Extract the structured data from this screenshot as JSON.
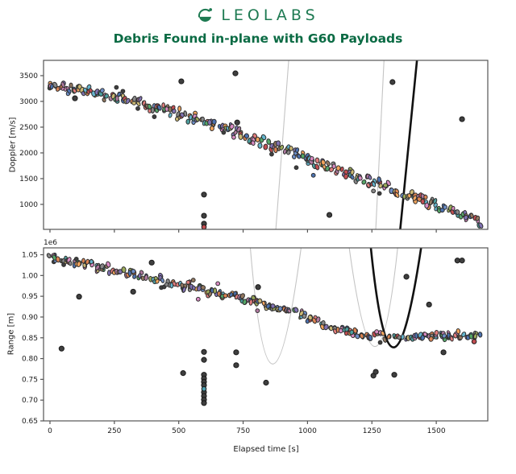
{
  "header": {
    "brand": "LEOLABS",
    "title": "Debris Found in-plane with G60 Payloads"
  },
  "xlabel": "Elapsed time [s]",
  "style": {
    "brand_color": "#1e7a52",
    "title_color": "#0b6b44",
    "axis_color": "#555555",
    "text_color": "#1a1a1a",
    "point_edge": "#2f2f2f",
    "outlier_fill": "#3f3f3f",
    "outlier_edge": "#1b1b1b",
    "faint_curve": "#c4c4c4",
    "bold_curve": "#111111",
    "palette": [
      "#c44e52",
      "#dd8452",
      "#55a868",
      "#4c72b0",
      "#8172b3",
      "#da8bc3",
      "#937860",
      "#ccb974",
      "#64b5cd",
      "#e27c7c",
      "#4c9f9f",
      "#b07aa1",
      "#9cab5a",
      "#f2a45c",
      "#6d8fc9",
      "#888888"
    ]
  },
  "chart_data": [
    {
      "type": "scatter",
      "subplot": "doppler",
      "ylabel": "Doppler [m/s]",
      "xlim": [
        -25,
        1700
      ],
      "ylim": [
        515,
        3797
      ],
      "yticks": [
        1000,
        1500,
        2000,
        2500,
        3000,
        3500
      ],
      "xticks": [
        0,
        250,
        500,
        750,
        1000,
        1250,
        1500
      ],
      "show_xtick_labels": false,
      "grid": false,
      "band_trend": [
        [
          0,
          3330
        ],
        [
          125,
          3220
        ],
        [
          275,
          3065
        ],
        [
          430,
          2860
        ],
        [
          590,
          2625
        ],
        [
          745,
          2345
        ],
        [
          900,
          2080
        ],
        [
          1060,
          1765
        ],
        [
          1215,
          1500
        ],
        [
          1370,
          1220
        ],
        [
          1530,
          940
        ],
        [
          1670,
          670
        ]
      ],
      "band_jitter": 70,
      "band_clusters": 160,
      "outliers": [
        [
          97,
          3060
        ],
        [
          510,
          3390
        ],
        [
          720,
          3545
        ],
        [
          727,
          2590
        ],
        [
          598,
          1190
        ],
        [
          598,
          780
        ],
        [
          598,
          625
        ],
        [
          1085,
          795
        ],
        [
          1330,
          3375
        ],
        [
          1600,
          2655
        ]
      ],
      "colored_outliers": [
        {
          "t": 598,
          "v": 560,
          "color": "#c44e52"
        }
      ],
      "lines": [
        {
          "p0": [
            927,
            3797
          ],
          "p1": [
            877,
            515
          ],
          "stroke": "faint"
        },
        {
          "p0": [
            1297,
            3797
          ],
          "p1": [
            1265,
            515
          ],
          "stroke": "faint"
        },
        {
          "p0": [
            1425,
            3797
          ],
          "p1": [
            1360,
            515
          ],
          "stroke": "bold"
        }
      ],
      "parabolas": []
    },
    {
      "type": "scatter",
      "subplot": "range",
      "ylabel": "Range [m]",
      "y_offset_label": "1e6",
      "xlim": [
        -25,
        1700
      ],
      "ylim": [
        650000,
        1066500
      ],
      "yticks": [
        650000,
        700000,
        750000,
        800000,
        850000,
        900000,
        950000,
        1000000,
        1050000
      ],
      "ytick_scale": 1000000,
      "xticks": [
        0,
        250,
        500,
        750,
        1000,
        1250,
        1500
      ],
      "show_xtick_labels": true,
      "grid": false,
      "band_trend": [
        [
          0,
          1046000
        ],
        [
          119,
          1029000
        ],
        [
          276,
          1010000
        ],
        [
          432,
          988000
        ],
        [
          589,
          967000
        ],
        [
          745,
          944000
        ],
        [
          902,
          920000
        ],
        [
          996,
          901000
        ],
        [
          1058,
          882000
        ],
        [
          1121,
          869000
        ],
        [
          1184,
          859000
        ],
        [
          1246,
          856000
        ],
        [
          1309,
          852000
        ],
        [
          1372,
          850000
        ],
        [
          1434,
          852000
        ],
        [
          1497,
          854000
        ],
        [
          1560,
          856000
        ],
        [
          1622,
          857000
        ],
        [
          1670,
          859000
        ]
      ],
      "band_jitter": 6500,
      "band_clusters": 160,
      "outliers": [
        [
          45,
          824000
        ],
        [
          113,
          949000
        ],
        [
          323,
          961000
        ],
        [
          395,
          1031000
        ],
        [
          517,
          765000
        ],
        [
          598,
          816000
        ],
        [
          598,
          797000
        ],
        [
          598,
          761000
        ],
        [
          598,
          752000
        ],
        [
          598,
          744000
        ],
        [
          598,
          736000
        ],
        [
          598,
          719000
        ],
        [
          598,
          710000
        ],
        [
          598,
          701000
        ],
        [
          598,
          693000
        ],
        [
          723,
          815000
        ],
        [
          723,
          784000
        ],
        [
          808,
          972000
        ],
        [
          839,
          742000
        ],
        [
          1256,
          759000
        ],
        [
          1265,
          768000
        ],
        [
          1337,
          761000
        ],
        [
          1384,
          997000
        ],
        [
          1472,
          930000
        ],
        [
          1528,
          815000
        ],
        [
          1582,
          1036000
        ],
        [
          1600,
          1036000
        ]
      ],
      "colored_outliers": [
        {
          "t": 598,
          "v": 727000,
          "color": "#4c9fb0"
        },
        {
          "t": 1647,
          "v": 841000,
          "color": "#c44e52"
        }
      ],
      "lines": [],
      "parabolas": [
        {
          "left": [
            778,
            1066500
          ],
          "vertex": [
            865,
            787000
          ],
          "right": [
            975,
            1066500
          ],
          "stroke": "faint"
        },
        {
          "left": [
            1162,
            1066500
          ],
          "vertex": [
            1262,
            829000
          ],
          "right": [
            1350,
            1066500
          ],
          "stroke": "faint"
        },
        {
          "left": [
            1246,
            1066500
          ],
          "vertex": [
            1334,
            827000
          ],
          "right": [
            1441,
            1066500
          ],
          "stroke": "bold"
        }
      ]
    }
  ]
}
